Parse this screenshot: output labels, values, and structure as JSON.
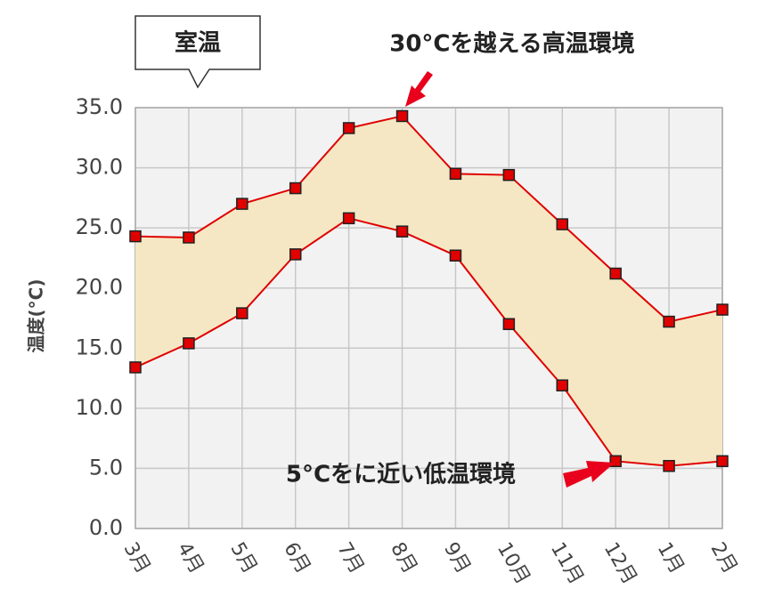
{
  "chart_data": {
    "type": "range-line",
    "title": "室温",
    "y_label": "温度(°C)",
    "annotations": [
      "30°Cを越える高温環境",
      "5°Cをに近い低温環境"
    ],
    "categories": [
      "3月",
      "4月",
      "5月",
      "6月",
      "7月",
      "8月",
      "9月",
      "10月",
      "11月",
      "12月",
      "1月",
      "2月"
    ],
    "series": [
      {
        "color": "#e00000",
        "values": [
          24.3,
          24.2,
          27.0,
          28.3,
          33.3,
          34.3,
          29.5,
          29.4,
          25.3,
          21.2,
          17.2,
          18.2
        ]
      },
      {
        "color": "#e00000",
        "values": [
          13.4,
          15.4,
          17.9,
          22.8,
          25.8,
          24.7,
          22.7,
          17.0,
          11.9,
          5.6,
          5.2,
          5.6
        ]
      }
    ],
    "fill_color": "#f5e7c4",
    "ylim": [
      0,
      35
    ],
    "yticks": [
      {
        "value": 0,
        "label": "0.0"
      },
      {
        "value": 5,
        "label": "5.0"
      },
      {
        "value": 10,
        "label": "10.0"
      },
      {
        "value": 15,
        "label": "15.0"
      },
      {
        "value": 20,
        "label": "20.0"
      },
      {
        "value": 25,
        "label": "25.0"
      },
      {
        "value": 30,
        "label": "30.0"
      },
      {
        "value": 35,
        "label": "35.0"
      }
    ],
    "grid": true
  }
}
